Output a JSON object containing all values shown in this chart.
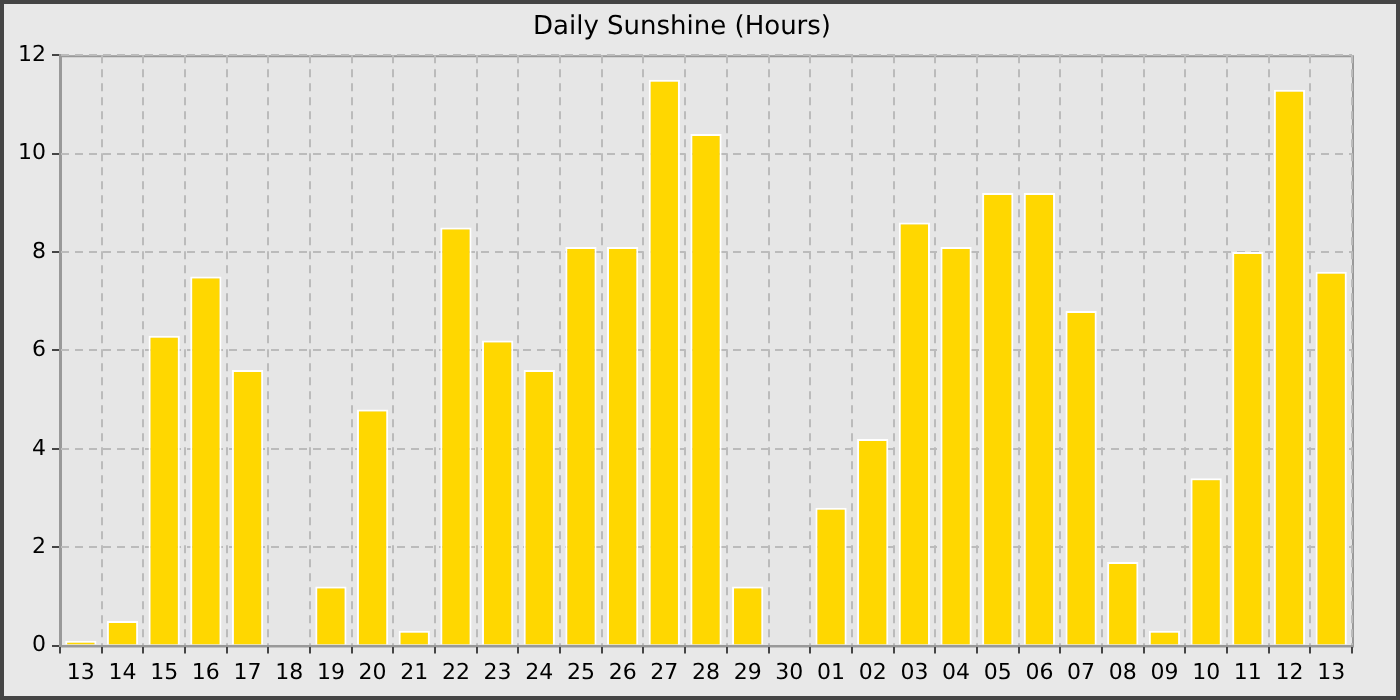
{
  "chart_data": {
    "type": "bar",
    "title": "Daily Sunshine (Hours)",
    "categories": [
      "13",
      "14",
      "15",
      "16",
      "17",
      "18",
      "19",
      "20",
      "21",
      "22",
      "23",
      "24",
      "25",
      "26",
      "27",
      "28",
      "29",
      "30",
      "01",
      "02",
      "03",
      "04",
      "05",
      "06",
      "07",
      "08",
      "09",
      "10",
      "11",
      "12",
      "13"
    ],
    "values": [
      0.1,
      0.5,
      6.3,
      7.5,
      5.6,
      0,
      1.2,
      4.8,
      0.3,
      8.5,
      6.2,
      5.6,
      8.1,
      8.1,
      11.5,
      10.4,
      1.2,
      0,
      2.8,
      4.2,
      8.6,
      8.1,
      9.2,
      9.2,
      6.8,
      1.7,
      0.3,
      3.4,
      8.0,
      11.3,
      7.6
    ],
    "color": "#ffd700",
    "ylim": [
      0,
      12
    ],
    "yticks": [
      0,
      2,
      4,
      6,
      8,
      10,
      12
    ],
    "grid": true,
    "legend": false
  }
}
